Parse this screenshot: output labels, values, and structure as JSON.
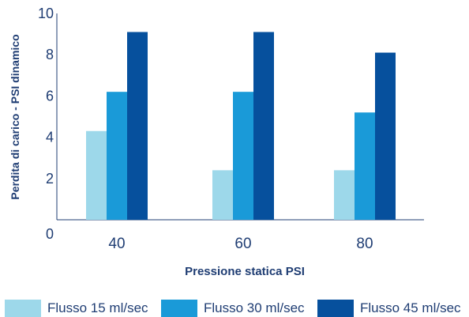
{
  "chart_data": {
    "type": "bar",
    "categories": [
      "40",
      "60",
      "80"
    ],
    "series": [
      {
        "name": "Flusso 15 ml/sec",
        "values": [
          4.3,
          2.4,
          2.4
        ],
        "color": "#9dd8ea"
      },
      {
        "name": "Flusso 30 ml/sec",
        "values": [
          6.2,
          6.2,
          5.2
        ],
        "color": "#1a9ad8"
      },
      {
        "name": "Flusso 45 ml/sec",
        "values": [
          9.1,
          9.1,
          8.1
        ],
        "color": "#06509d"
      }
    ],
    "title": "",
    "xlabel": "Pressione statica PSI",
    "ylabel": "Perdita di carico - PSI dinamico",
    "ylim": [
      0,
      10
    ],
    "yticks": [
      "0",
      "2",
      "4",
      "6",
      "8",
      "10"
    ],
    "grid": false,
    "legend": "bottom",
    "axis_color": "#1f3d73",
    "text_color": "#1f3d73"
  }
}
